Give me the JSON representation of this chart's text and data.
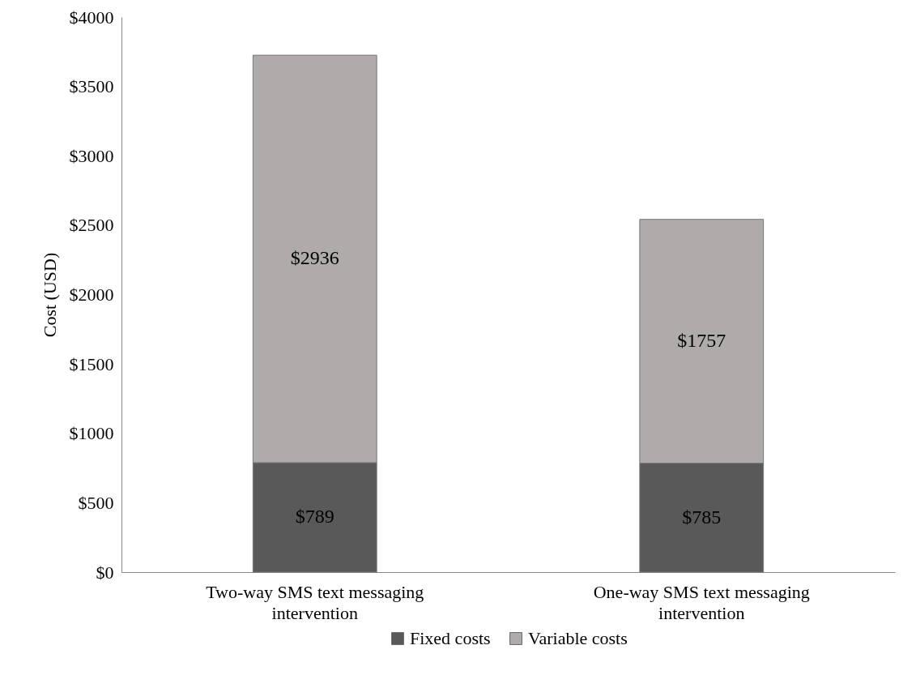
{
  "chart_data": {
    "type": "bar",
    "stacked": true,
    "ylabel": "Cost (USD)",
    "categories": [
      "Two-way SMS text messaging intervention",
      "One-way SMS text messaging intervention"
    ],
    "series": [
      {
        "name": "Fixed costs",
        "color": "#595959",
        "values": [
          789,
          785
        ],
        "value_labels": [
          "$789",
          "$785"
        ]
      },
      {
        "name": "Variable costs",
        "color": "#afabab",
        "values": [
          2936,
          1757
        ],
        "value_labels": [
          "$2936",
          "$1757"
        ]
      }
    ],
    "ylim": [
      0,
      4000
    ],
    "yticks": [
      {
        "value": 0,
        "label": "$0"
      },
      {
        "value": 500,
        "label": "$500"
      },
      {
        "value": 1000,
        "label": "$1000"
      },
      {
        "value": 1500,
        "label": "$1500"
      },
      {
        "value": 2000,
        "label": "$2000"
      },
      {
        "value": 2500,
        "label": "$2500"
      },
      {
        "value": 3000,
        "label": "$3000"
      },
      {
        "value": 3500,
        "label": "$3500"
      },
      {
        "value": 4000,
        "label": "$4000"
      }
    ],
    "grid": false,
    "legend": "bottom"
  }
}
